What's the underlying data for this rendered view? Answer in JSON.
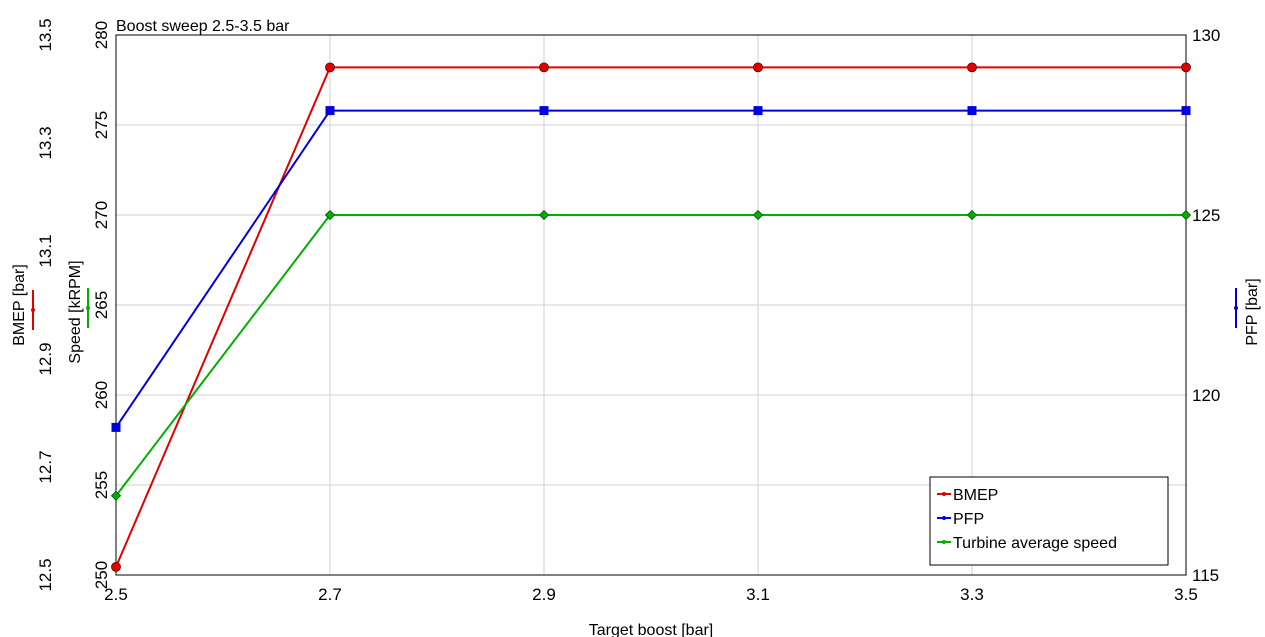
{
  "chart_data": {
    "type": "line",
    "title": "Boost sweep 2.5-3.5 bar",
    "xlabel": "Target boost [bar]",
    "x": [
      2.5,
      2.7,
      2.9,
      3.1,
      3.3,
      3.5
    ],
    "xlim": [
      2.5,
      3.5
    ],
    "x_ticks": [
      "2.5",
      "2.7",
      "2.9",
      "3.1",
      "3.3",
      "3.5"
    ],
    "grid": true,
    "legend_position": "bottom-right",
    "axes": {
      "bmep": {
        "label": "BMEP [bar]",
        "ylim": [
          12.5,
          13.5
        ],
        "ticks": [
          "12.5",
          "12.7",
          "12.9",
          "13.1",
          "13.3",
          "13.5"
        ],
        "color": "#e00000"
      },
      "speed": {
        "label": "Speed [kRPM]",
        "ylim": [
          250,
          280
        ],
        "ticks": [
          "250",
          "255",
          "260",
          "265",
          "270",
          "275",
          "280"
        ],
        "color": "#00b000"
      },
      "pfp": {
        "label": "PFP [bar]",
        "ylim": [
          115,
          130
        ],
        "ticks": [
          "115",
          "120",
          "125",
          "130"
        ],
        "color": "#0000e0"
      }
    },
    "series": [
      {
        "name": "BMEP",
        "axis": "bmep",
        "color": "#e00000",
        "marker": "circle",
        "values": [
          12.515,
          13.44,
          13.44,
          13.44,
          13.44,
          13.44
        ]
      },
      {
        "name": "PFP",
        "axis": "pfp",
        "color": "#0000e0",
        "marker": "square",
        "values": [
          119.1,
          127.9,
          127.9,
          127.9,
          127.9,
          127.9
        ]
      },
      {
        "name": "Turbine average speed",
        "axis": "speed",
        "color": "#00b000",
        "marker": "diamond",
        "values": [
          254.4,
          270.0,
          270.0,
          270.0,
          270.0,
          270.0
        ]
      }
    ]
  }
}
